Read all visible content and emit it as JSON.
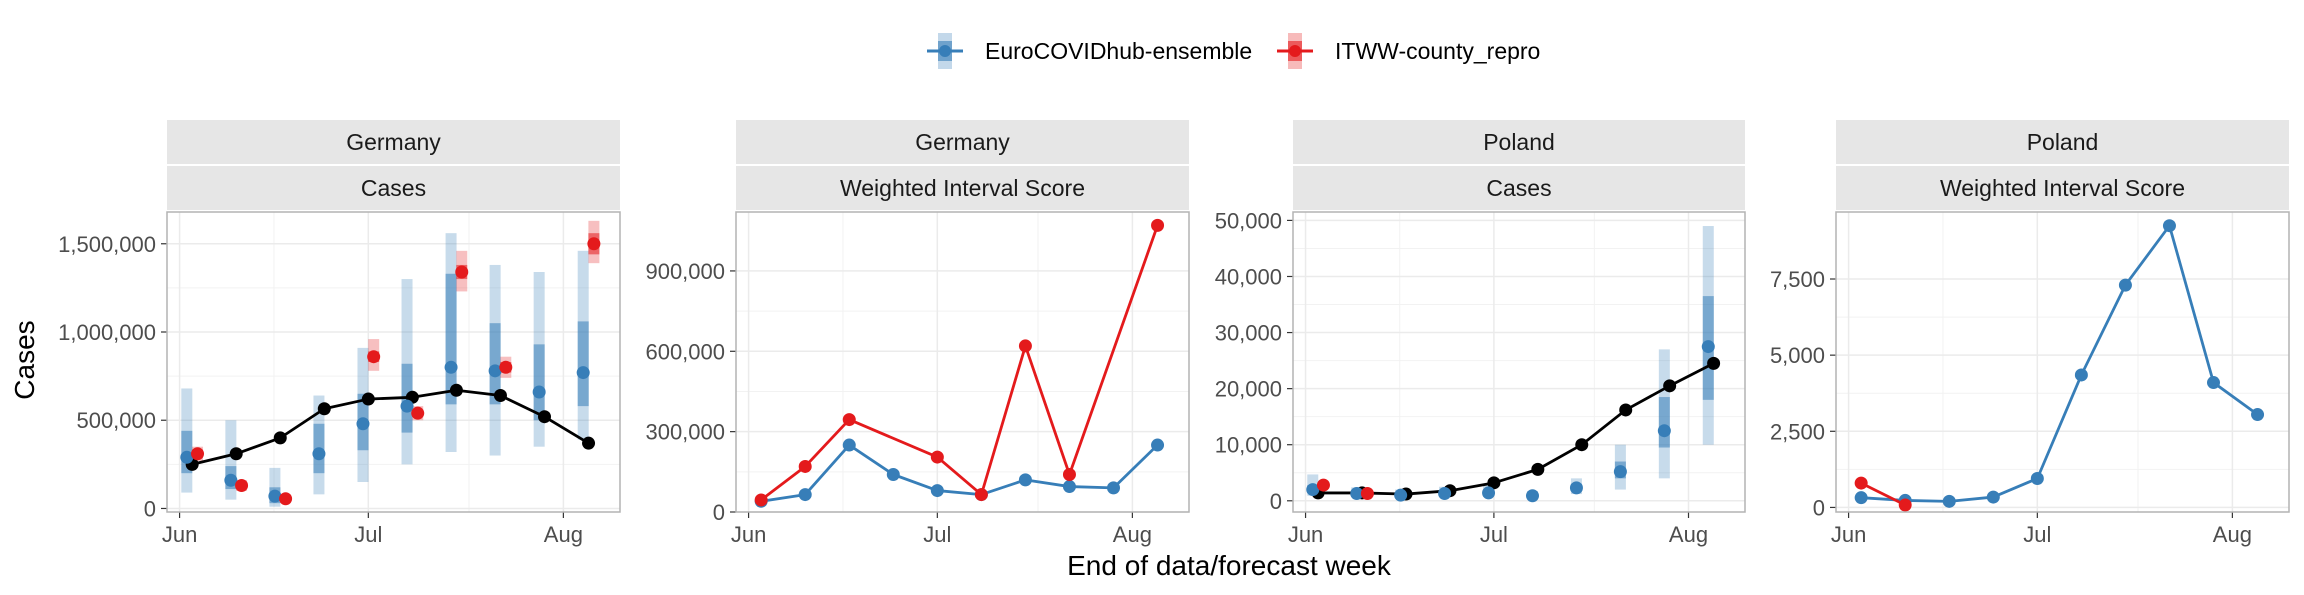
{
  "chart_data": [
    {
      "type": "line",
      "facet": [
        "Germany",
        "Cases"
      ],
      "x_ticks": [
        {
          "x": 0,
          "label": "Jun"
        },
        {
          "x": 30,
          "label": "Jul"
        },
        {
          "x": 61,
          "label": "Aug"
        }
      ],
      "xlim": [
        -2,
        70
      ],
      "ylim": [
        -20000,
        1680000
      ],
      "y_ticks": [
        {
          "v": 0,
          "label": "0"
        },
        {
          "v": 500000,
          "label": "500,000"
        },
        {
          "v": 1000000,
          "label": "1,000,000"
        },
        {
          "v": 1500000,
          "label": "1,500,000"
        }
      ],
      "series": [
        {
          "name": "observed",
          "color": "#000000",
          "x": [
            2,
            9,
            16,
            23,
            30,
            37,
            44,
            51,
            58,
            65
          ],
          "y": [
            250000,
            310000,
            400000,
            565000,
            620000,
            630000,
            670000,
            640000,
            520000,
            370000
          ]
        },
        {
          "name": "EuroCOVIDhub-ensemble",
          "color": "#377eb8",
          "offset": -1,
          "x": [
            2,
            9,
            16,
            23,
            30,
            37,
            44,
            51,
            58,
            65
          ],
          "median": [
            290000,
            160000,
            70000,
            310000,
            480000,
            580000,
            800000,
            780000,
            660000,
            770000
          ],
          "q25": [
            200000,
            110000,
            30000,
            200000,
            330000,
            430000,
            590000,
            590000,
            500000,
            580000
          ],
          "q75": [
            440000,
            240000,
            120000,
            480000,
            650000,
            820000,
            1330000,
            1050000,
            930000,
            1060000
          ],
          "q05": [
            90000,
            50000,
            10000,
            80000,
            150000,
            250000,
            320000,
            300000,
            350000,
            390000
          ],
          "q95": [
            680000,
            500000,
            230000,
            640000,
            910000,
            1300000,
            1560000,
            1380000,
            1340000,
            1460000
          ]
        },
        {
          "name": "ITWW-county_repro",
          "color": "#e41a1c",
          "offset": 1,
          "x": [
            2,
            9,
            16,
            30,
            37,
            44,
            51,
            65
          ],
          "median": [
            310000,
            130000,
            55000,
            860000,
            540000,
            1340000,
            800000,
            1500000
          ],
          "q25": [
            290000,
            115000,
            50000,
            830000,
            520000,
            1300000,
            770000,
            1440000
          ],
          "q75": [
            330000,
            145000,
            60000,
            890000,
            560000,
            1380000,
            830000,
            1560000
          ],
          "q05": [
            270000,
            100000,
            45000,
            780000,
            500000,
            1230000,
            740000,
            1390000
          ],
          "q95": [
            350000,
            160000,
            65000,
            960000,
            580000,
            1460000,
            860000,
            1630000
          ]
        }
      ]
    },
    {
      "type": "line",
      "facet": [
        "Germany",
        "Weighted Interval Score"
      ],
      "x_ticks": [
        {
          "x": 0,
          "label": "Jun"
        },
        {
          "x": 30,
          "label": "Jul"
        },
        {
          "x": 61,
          "label": "Aug"
        }
      ],
      "xlim": [
        -2,
        70
      ],
      "ylim": [
        0,
        1120000
      ],
      "y_ticks": [
        {
          "v": 0,
          "label": "0"
        },
        {
          "v": 300000,
          "label": "300,000"
        },
        {
          "v": 600000,
          "label": "600,000"
        },
        {
          "v": 900000,
          "label": "900,000"
        }
      ],
      "series": [
        {
          "name": "EuroCOVIDhub-ensemble",
          "color": "#377eb8",
          "x": [
            2,
            9,
            16,
            23,
            30,
            37,
            44,
            51,
            58,
            65
          ],
          "y": [
            40000,
            65000,
            250000,
            140000,
            80000,
            65000,
            120000,
            95000,
            90000,
            250000
          ]
        },
        {
          "name": "ITWW-county_repro",
          "color": "#e41a1c",
          "x": [
            2,
            9,
            16,
            30,
            37,
            44,
            51,
            65
          ],
          "y": [
            45000,
            170000,
            345000,
            205000,
            65000,
            620000,
            140000,
            1070000
          ]
        }
      ]
    },
    {
      "type": "line",
      "facet": [
        "Poland",
        "Cases"
      ],
      "x_ticks": [
        {
          "x": 0,
          "label": "Jun"
        },
        {
          "x": 30,
          "label": "Jul"
        },
        {
          "x": 61,
          "label": "Aug"
        }
      ],
      "xlim": [
        -2,
        70
      ],
      "ylim": [
        -2000,
        51500
      ],
      "y_ticks": [
        {
          "v": 0,
          "label": "0"
        },
        {
          "v": 10000,
          "label": "10,000"
        },
        {
          "v": 20000,
          "label": "20,000"
        },
        {
          "v": 30000,
          "label": "30,000"
        },
        {
          "v": 40000,
          "label": "40,000"
        },
        {
          "v": 50000,
          "label": "50,000"
        }
      ],
      "series": [
        {
          "name": "observed",
          "color": "#000000",
          "x": [
            2,
            9,
            16,
            23,
            30,
            37,
            44,
            51,
            58,
            65
          ],
          "y": [
            1400,
            1400,
            1200,
            1800,
            3200,
            5600,
            10000,
            16200,
            20500,
            24500
          ]
        },
        {
          "name": "EuroCOVIDhub-ensemble",
          "color": "#377eb8",
          "offset": -1,
          "x": [
            2,
            9,
            16,
            23,
            30,
            37,
            44,
            51,
            58,
            65
          ],
          "median": [
            2000,
            1300,
            1000,
            1300,
            1400,
            900,
            2300,
            5200,
            12500,
            27500
          ],
          "q25": [
            1500,
            1000,
            800,
            1000,
            1100,
            700,
            1800,
            4000,
            9500,
            18000
          ],
          "q75": [
            2800,
            1700,
            1300,
            1700,
            1800,
            1200,
            3000,
            7000,
            18500,
            36500
          ],
          "q05": [
            900,
            600,
            500,
            600,
            700,
            400,
            1200,
            2000,
            4000,
            10000
          ],
          "q95": [
            4700,
            2400,
            2000,
            2500,
            2800,
            1700,
            4000,
            10000,
            27000,
            49000
          ]
        },
        {
          "name": "ITWW-county_repro",
          "color": "#e41a1c",
          "offset": 1,
          "x": [
            2,
            9
          ],
          "median": [
            2800,
            1300
          ],
          "q25": [
            2600,
            1200
          ],
          "q75": [
            3000,
            1400
          ],
          "q05": [
            2400,
            1100
          ],
          "q95": [
            3200,
            1500
          ]
        }
      ]
    },
    {
      "type": "line",
      "facet": [
        "Poland",
        "Weighted Interval Score"
      ],
      "x_ticks": [
        {
          "x": 0,
          "label": "Jun"
        },
        {
          "x": 30,
          "label": "Jul"
        },
        {
          "x": 61,
          "label": "Aug"
        }
      ],
      "xlim": [
        -2,
        70
      ],
      "ylim": [
        -150,
        9700
      ],
      "y_ticks": [
        {
          "v": 0,
          "label": "0"
        },
        {
          "v": 2500,
          "label": "2,500"
        },
        {
          "v": 5000,
          "label": "5,000"
        },
        {
          "v": 7500,
          "label": "7,500"
        }
      ],
      "series": [
        {
          "name": "EuroCOVIDhub-ensemble",
          "color": "#377eb8",
          "x": [
            2,
            9,
            16,
            23,
            30,
            37,
            44,
            51,
            58,
            65
          ],
          "y": [
            320,
            230,
            200,
            340,
            950,
            4350,
            7300,
            9250,
            4100,
            3050
          ]
        },
        {
          "name": "ITWW-county_repro",
          "color": "#e41a1c",
          "x": [
            2,
            9
          ],
          "y": [
            800,
            80
          ]
        }
      ]
    }
  ],
  "legend": [
    {
      "label": "EuroCOVIDhub-ensemble",
      "color": "#377eb8"
    },
    {
      "label": "ITWW-county_repro",
      "color": "#e41a1c"
    }
  ],
  "xlabel": "End of data/forecast week",
  "ylabel": "Cases",
  "colors": {
    "ensemble": "#377eb8",
    "itww": "#e41a1c",
    "observed": "#000000",
    "strip_bg": "#e6e6e6",
    "grid": "#ebebeb"
  }
}
